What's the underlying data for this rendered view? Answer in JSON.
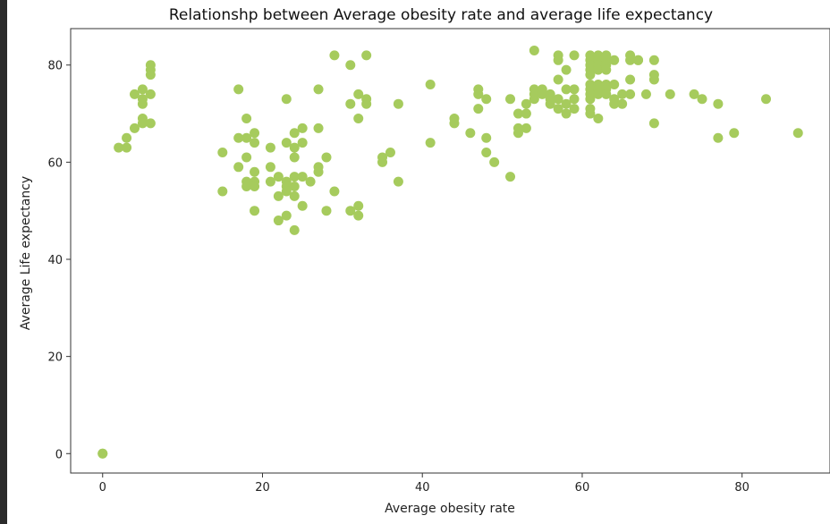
{
  "chart_data": {
    "type": "scatter",
    "title": "Relationshp between Average obesity rate and average life expectancy",
    "xlabel": "Average obesity rate",
    "ylabel": "Average Life expectancy",
    "xlim": [
      -4,
      91
    ],
    "ylim": [
      -4,
      87.5
    ],
    "xticks": [
      0,
      20,
      40,
      60,
      80
    ],
    "yticks": [
      0,
      20,
      40,
      60,
      80
    ],
    "grid": false,
    "point_color": "#a6cb5d",
    "series": [
      {
        "values_xy": [
          [
            0,
            0
          ],
          [
            0,
            0
          ],
          [
            2,
            63
          ],
          [
            3,
            63
          ],
          [
            3,
            65
          ],
          [
            4,
            67
          ],
          [
            4,
            74
          ],
          [
            5,
            73
          ],
          [
            5,
            75
          ],
          [
            5,
            72
          ],
          [
            5,
            69
          ],
          [
            5,
            68
          ],
          [
            6,
            80
          ],
          [
            6,
            79
          ],
          [
            6,
            78
          ],
          [
            6,
            74
          ],
          [
            6,
            68
          ],
          [
            15,
            62
          ],
          [
            15,
            54
          ],
          [
            17,
            75
          ],
          [
            17,
            65
          ],
          [
            17,
            59
          ],
          [
            18,
            69
          ],
          [
            18,
            65
          ],
          [
            18,
            61
          ],
          [
            18,
            56
          ],
          [
            18,
            55
          ],
          [
            19,
            66
          ],
          [
            19,
            64
          ],
          [
            19,
            58
          ],
          [
            19,
            56
          ],
          [
            19,
            55
          ],
          [
            19,
            50
          ],
          [
            21,
            63
          ],
          [
            21,
            59
          ],
          [
            21,
            56
          ],
          [
            22,
            57
          ],
          [
            22,
            53
          ],
          [
            22,
            48
          ],
          [
            23,
            73
          ],
          [
            23,
            64
          ],
          [
            23,
            56
          ],
          [
            23,
            55
          ],
          [
            23,
            54
          ],
          [
            23,
            49
          ],
          [
            24,
            66
          ],
          [
            24,
            63
          ],
          [
            24,
            61
          ],
          [
            24,
            57
          ],
          [
            24,
            55
          ],
          [
            24,
            53
          ],
          [
            24,
            46
          ],
          [
            25,
            67
          ],
          [
            25,
            64
          ],
          [
            25,
            57
          ],
          [
            25,
            51
          ],
          [
            26,
            56
          ],
          [
            27,
            75
          ],
          [
            27,
            67
          ],
          [
            27,
            59
          ],
          [
            27,
            58
          ],
          [
            28,
            61
          ],
          [
            28,
            50
          ],
          [
            29,
            82
          ],
          [
            29,
            54
          ],
          [
            31,
            80
          ],
          [
            31,
            72
          ],
          [
            31,
            50
          ],
          [
            32,
            74
          ],
          [
            32,
            69
          ],
          [
            32,
            51
          ],
          [
            32,
            49
          ],
          [
            33,
            82
          ],
          [
            33,
            73
          ],
          [
            33,
            72
          ],
          [
            35,
            61
          ],
          [
            35,
            60
          ],
          [
            36,
            62
          ],
          [
            37,
            72
          ],
          [
            37,
            56
          ],
          [
            41,
            76
          ],
          [
            41,
            64
          ],
          [
            44,
            69
          ],
          [
            44,
            68
          ],
          [
            46,
            66
          ],
          [
            47,
            75
          ],
          [
            47,
            74
          ],
          [
            47,
            71
          ],
          [
            48,
            73
          ],
          [
            48,
            65
          ],
          [
            48,
            62
          ],
          [
            49,
            60
          ],
          [
            51,
            73
          ],
          [
            51,
            57
          ],
          [
            52,
            70
          ],
          [
            52,
            67
          ],
          [
            52,
            66
          ],
          [
            53,
            72
          ],
          [
            53,
            70
          ],
          [
            53,
            67
          ],
          [
            54,
            83
          ],
          [
            54,
            75
          ],
          [
            54,
            74
          ],
          [
            54,
            73
          ],
          [
            55,
            75
          ],
          [
            55,
            74
          ],
          [
            56,
            74
          ],
          [
            56,
            73
          ],
          [
            56,
            72
          ],
          [
            57,
            82
          ],
          [
            57,
            81
          ],
          [
            57,
            77
          ],
          [
            57,
            73
          ],
          [
            57,
            71
          ],
          [
            58,
            79
          ],
          [
            58,
            75
          ],
          [
            58,
            72
          ],
          [
            58,
            70
          ],
          [
            59,
            82
          ],
          [
            59,
            75
          ],
          [
            59,
            73
          ],
          [
            59,
            71
          ],
          [
            61,
            82
          ],
          [
            61,
            81
          ],
          [
            61,
            80
          ],
          [
            61,
            79
          ],
          [
            61,
            78
          ],
          [
            61,
            76
          ],
          [
            61,
            75
          ],
          [
            61,
            74
          ],
          [
            61,
            73
          ],
          [
            61,
            71
          ],
          [
            61,
            70
          ],
          [
            62,
            82
          ],
          [
            62,
            81
          ],
          [
            62,
            80
          ],
          [
            62,
            79
          ],
          [
            62,
            76
          ],
          [
            62,
            75
          ],
          [
            62,
            74
          ],
          [
            62,
            69
          ],
          [
            63,
            82
          ],
          [
            63,
            81
          ],
          [
            63,
            80
          ],
          [
            63,
            79
          ],
          [
            63,
            76
          ],
          [
            63,
            75
          ],
          [
            63,
            74
          ],
          [
            64,
            81
          ],
          [
            64,
            76
          ],
          [
            64,
            73
          ],
          [
            64,
            72
          ],
          [
            65,
            74
          ],
          [
            65,
            72
          ],
          [
            66,
            82
          ],
          [
            66,
            81
          ],
          [
            66,
            77
          ],
          [
            66,
            74
          ],
          [
            67,
            81
          ],
          [
            67,
            81
          ],
          [
            68,
            74
          ],
          [
            69,
            81
          ],
          [
            69,
            78
          ],
          [
            69,
            77
          ],
          [
            69,
            68
          ],
          [
            71,
            74
          ],
          [
            74,
            74
          ],
          [
            75,
            73
          ],
          [
            77,
            72
          ],
          [
            77,
            65
          ],
          [
            79,
            66
          ],
          [
            83,
            73
          ],
          [
            87,
            66
          ]
        ]
      }
    ]
  }
}
